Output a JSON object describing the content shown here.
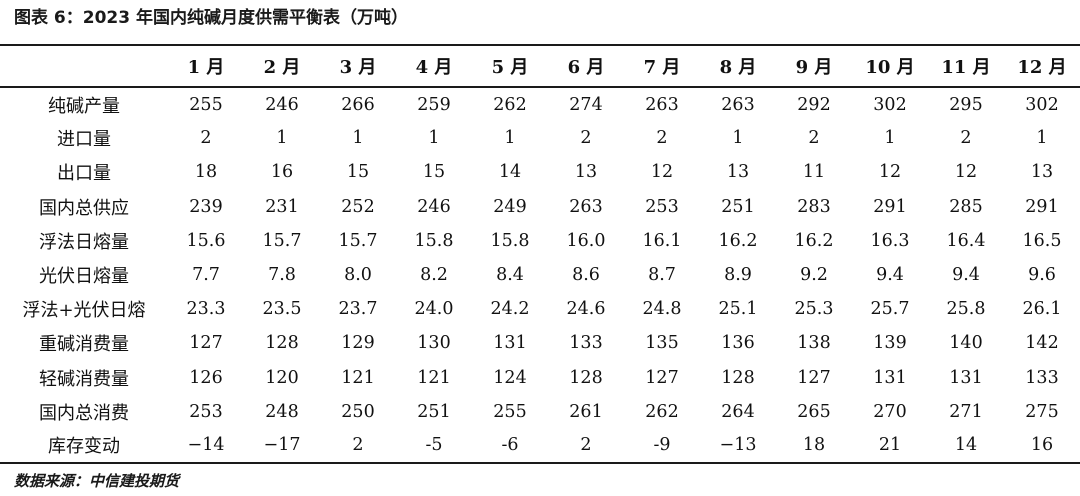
{
  "title": "图表 6：2023 年国内纯碱月度供需平衡表（万吨）",
  "table": {
    "header_label": "",
    "months": [
      "1 月",
      "2 月",
      "3 月",
      "4 月",
      "5 月",
      "6 月",
      "7 月",
      "8 月",
      "9 月",
      "10 月",
      "11 月",
      "12 月"
    ],
    "rows": [
      {
        "label": "纯碱产量",
        "values": [
          "255",
          "246",
          "266",
          "259",
          "262",
          "274",
          "263",
          "263",
          "292",
          "302",
          "295",
          "302"
        ]
      },
      {
        "label": "进口量",
        "values": [
          "2",
          "1",
          "1",
          "1",
          "1",
          "2",
          "2",
          "1",
          "2",
          "1",
          "2",
          "1"
        ]
      },
      {
        "label": "出口量",
        "values": [
          "18",
          "16",
          "15",
          "15",
          "14",
          "13",
          "12",
          "13",
          "11",
          "12",
          "12",
          "13"
        ]
      },
      {
        "label": "国内总供应",
        "values": [
          "239",
          "231",
          "252",
          "246",
          "249",
          "263",
          "253",
          "251",
          "283",
          "291",
          "285",
          "291"
        ]
      },
      {
        "label": "浮法日熔量",
        "values": [
          "15.6",
          "15.7",
          "15.7",
          "15.8",
          "15.8",
          "16.0",
          "16.1",
          "16.2",
          "16.2",
          "16.3",
          "16.4",
          "16.5"
        ]
      },
      {
        "label": "光伏日熔量",
        "values": [
          "7.7",
          "7.8",
          "8.0",
          "8.2",
          "8.4",
          "8.6",
          "8.7",
          "8.9",
          "9.2",
          "9.4",
          "9.4",
          "9.6"
        ]
      },
      {
        "label": "浮法+光伏日熔",
        "values": [
          "23.3",
          "23.5",
          "23.7",
          "24.0",
          "24.2",
          "24.6",
          "24.8",
          "25.1",
          "25.3",
          "25.7",
          "25.8",
          "26.1"
        ]
      },
      {
        "label": "重碱消费量",
        "values": [
          "127",
          "128",
          "129",
          "130",
          "131",
          "133",
          "135",
          "136",
          "138",
          "139",
          "140",
          "142"
        ]
      },
      {
        "label": "轻碱消费量",
        "values": [
          "126",
          "120",
          "121",
          "121",
          "124",
          "128",
          "127",
          "128",
          "127",
          "131",
          "131",
          "133"
        ]
      },
      {
        "label": "国内总消费",
        "values": [
          "253",
          "248",
          "250",
          "251",
          "255",
          "261",
          "262",
          "264",
          "265",
          "270",
          "271",
          "275"
        ]
      },
      {
        "label": "库存变动",
        "values": [
          "−14",
          "−17",
          "2",
          "-5",
          "-6",
          "2",
          "-9",
          "−13",
          "18",
          "21",
          "14",
          "16"
        ]
      }
    ]
  },
  "source": "数据来源：中信建投期货"
}
